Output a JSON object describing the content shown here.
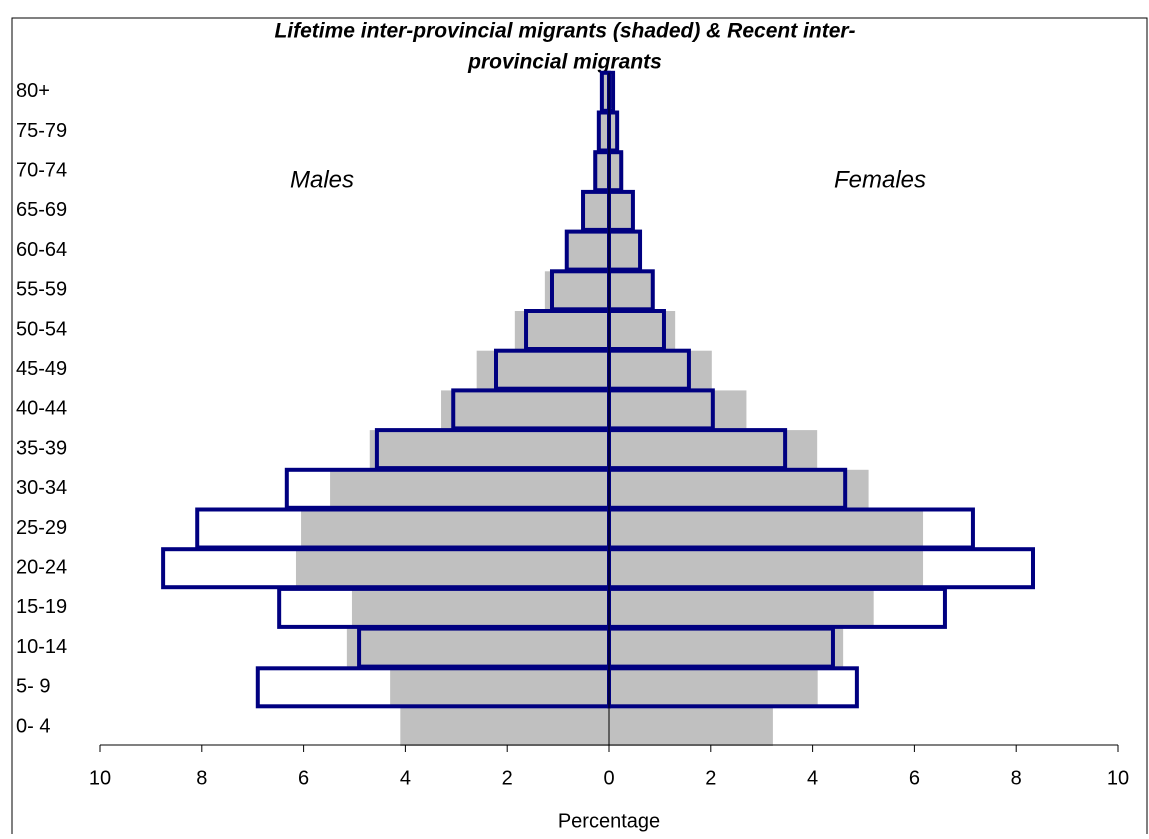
{
  "chart_data": {
    "type": "pyramid",
    "title": "Lifetime inter-provincial migrants (shaded) & Recent inter-",
    "subtitle": "provincial migrants",
    "annotations": [
      "Males",
      "Females"
    ],
    "xlabel": "Percentage",
    "categories": [
      "0- 4",
      "5- 9",
      "10-14",
      "15-19",
      "20-24",
      "25-29",
      "30-34",
      "35-39",
      "40-44",
      "45-49",
      "50-54",
      "55-59",
      "60-64",
      "65-69",
      "70-74",
      "75-79",
      "80+"
    ],
    "series": [
      {
        "side": "left",
        "style": "shaded",
        "color": "#c0c0c0",
        "values": [
          4.1,
          4.3,
          5.15,
          5.05,
          6.15,
          6.05,
          5.48,
          4.7,
          3.3,
          2.6,
          1.85,
          1.26,
          0.84,
          0.55,
          0.31,
          0.2,
          0.12
        ]
      },
      {
        "side": "right",
        "style": "shaded",
        "color": "#c0c0c0",
        "values": [
          3.22,
          4.1,
          4.6,
          5.2,
          6.17,
          6.17,
          5.1,
          4.09,
          2.7,
          2.02,
          1.3,
          0.83,
          0.57,
          0.45,
          0.28,
          0.18,
          0.1
        ]
      },
      {
        "side": "left",
        "style": "outline",
        "color": "#000080",
        "values": [
          null,
          6.9,
          4.91,
          6.48,
          8.76,
          8.09,
          6.33,
          4.56,
          3.06,
          2.22,
          1.63,
          1.12,
          0.83,
          0.51,
          0.27,
          0.2,
          0.14
        ]
      },
      {
        "side": "right",
        "style": "outline",
        "color": "#000080",
        "values": [
          null,
          4.87,
          4.4,
          6.6,
          8.33,
          7.15,
          4.64,
          3.46,
          2.04,
          1.57,
          1.08,
          0.86,
          0.61,
          0.47,
          0.24,
          0.16,
          0.08
        ]
      }
    ],
    "xlim": [
      -10,
      10
    ],
    "xticks": [
      {
        "value": -10,
        "label": "10"
      },
      {
        "value": -8,
        "label": "8"
      },
      {
        "value": -6,
        "label": "6"
      },
      {
        "value": -4,
        "label": "4"
      },
      {
        "value": -2,
        "label": "2"
      },
      0,
      2,
      4,
      6,
      8,
      10
    ]
  }
}
